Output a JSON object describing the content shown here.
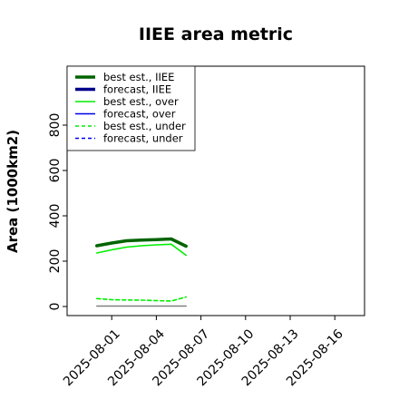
{
  "chart_data": {
    "type": "line",
    "title": "IIEE area metric",
    "xlabel": "",
    "ylabel": "Area (1000km2)",
    "xlim": [
      "2025-07-29",
      "2025-08-18"
    ],
    "ylim": [
      -40,
      1060
    ],
    "yticks": [
      0,
      200,
      400,
      600,
      800
    ],
    "xticks": [
      "2025-08-01",
      "2025-08-04",
      "2025-08-07",
      "2025-08-10",
      "2025-08-13",
      "2025-08-16"
    ],
    "xtick_highlight": "2025-08-07",
    "xtick_highlight_color": "#228b22",
    "grid": false,
    "legend_position": "top-left",
    "series": [
      {
        "name": "best est., IIEE",
        "color": "#006400",
        "style": "solid",
        "width": "thick",
        "x": [
          "2025-07-31",
          "2025-08-01",
          "2025-08-02",
          "2025-08-03",
          "2025-08-04",
          "2025-08-05",
          "2025-08-06"
        ],
        "values": [
          268,
          280,
          290,
          293,
          295,
          298,
          266
        ]
      },
      {
        "name": "forecast, IIEE",
        "color": "#00008b",
        "style": "solid",
        "width": "thick",
        "x": [],
        "values": []
      },
      {
        "name": "best est., over",
        "color": "#00ee00",
        "style": "solid",
        "width": "thin",
        "x": [
          "2025-07-31",
          "2025-08-01",
          "2025-08-02",
          "2025-08-03",
          "2025-08-04",
          "2025-08-05",
          "2025-08-06"
        ],
        "values": [
          236,
          250,
          262,
          268,
          272,
          275,
          226
        ]
      },
      {
        "name": "forecast, over",
        "color": "#0000ee",
        "style": "solid",
        "width": "thin",
        "x": [],
        "values": []
      },
      {
        "name": "best est., under",
        "color": "#00ee00",
        "style": "dashed",
        "width": "thin",
        "x": [
          "2025-07-31",
          "2025-08-01",
          "2025-08-02",
          "2025-08-03",
          "2025-08-04",
          "2025-08-05",
          "2025-08-06"
        ],
        "values": [
          35,
          30,
          29,
          28,
          26,
          24,
          42
        ]
      },
      {
        "name": "forecast, under",
        "color": "#0000ee",
        "style": "dashed",
        "width": "thin",
        "x": [],
        "values": []
      },
      {
        "name": "",
        "color": "#808080",
        "style": "solid",
        "width": "thin",
        "x": [
          "2025-07-31",
          "2025-08-06"
        ],
        "values": [
          2,
          2
        ]
      }
    ]
  }
}
